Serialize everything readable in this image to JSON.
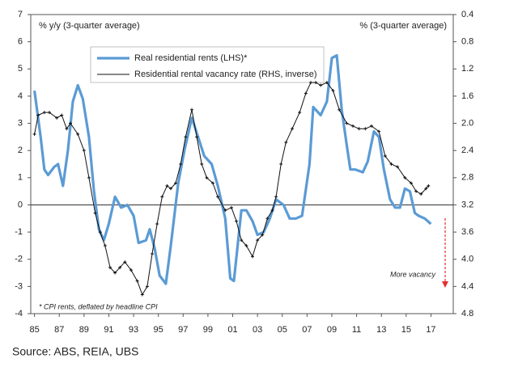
{
  "chart_data": {
    "type": "line",
    "y_label": "% y/y (3-quarter average)",
    "y2_label": "% (3-quarter average)",
    "note": "* CPI rents, deflated by headline CPI",
    "annotation": "More vacancy",
    "source": "Source: ABS, REIA, UBS",
    "xlim": [
      1984.7,
      2018.8
    ],
    "xticks": [
      {
        "value": 1985,
        "label": "85"
      },
      {
        "value": 1987,
        "label": "87"
      },
      {
        "value": 1989,
        "label": "89"
      },
      {
        "value": 1991,
        "label": "91"
      },
      {
        "value": 1993,
        "label": "93"
      },
      {
        "value": 1995,
        "label": "95"
      },
      {
        "value": 1997,
        "label": "97"
      },
      {
        "value": 1999,
        "label": "99"
      },
      {
        "value": 2001,
        "label": "01"
      },
      {
        "value": 2003,
        "label": "03"
      },
      {
        "value": 2005,
        "label": "05"
      },
      {
        "value": 2007,
        "label": "07"
      },
      {
        "value": 2009,
        "label": "09"
      },
      {
        "value": 2011,
        "label": "11"
      },
      {
        "value": 2013,
        "label": "13"
      },
      {
        "value": 2015,
        "label": "15"
      },
      {
        "value": 2017,
        "label": "17"
      }
    ],
    "ylim": [
      -4,
      7
    ],
    "yticks": [
      -4,
      -3,
      -2,
      -1,
      0,
      1,
      2,
      3,
      4,
      5,
      6,
      7
    ],
    "y2lim": [
      4.8,
      0.4
    ],
    "y2ticks": [
      4.8,
      4.4,
      4.0,
      3.6,
      3.2,
      2.8,
      2.4,
      2.0,
      1.6,
      1.2,
      0.8,
      0.4
    ],
    "series": [
      {
        "name": "Real residential rents (LHS)*",
        "color": "#5b9bd5",
        "x": [
          1985.0,
          1985.5,
          1985.8,
          1986.1,
          1986.6,
          1986.9,
          1987.3,
          1987.7,
          1988.1,
          1988.5,
          1988.9,
          1989.4,
          1989.8,
          1990.2,
          1990.6,
          1991.0,
          1991.5,
          1992.0,
          1992.5,
          1993.0,
          1993.4,
          1994.0,
          1994.3,
          1994.7,
          1995.1,
          1995.6,
          1996.0,
          1996.6,
          1997.1,
          1997.7,
          1998.2,
          1998.7,
          1999.3,
          1999.8,
          2000.4,
          2000.8,
          2001.1,
          2001.7,
          2002.1,
          2002.6,
          2003.0,
          2003.5,
          2004.0,
          2004.5,
          2005.1,
          2005.6,
          2006.1,
          2006.6,
          2007.2,
          2007.5,
          2008.1,
          2008.6,
          2009.0,
          2009.4,
          2009.8,
          2010.2,
          2010.5,
          2010.9,
          2011.5,
          2011.9,
          2012.4,
          2012.8,
          2013.2,
          2013.7,
          2014.1,
          2014.5,
          2014.9,
          2015.3,
          2015.7,
          2016.0,
          2016.5,
          2017.0
        ],
        "values": [
          4.2,
          2.5,
          1.3,
          1.1,
          1.4,
          1.5,
          0.7,
          2.0,
          3.8,
          4.4,
          3.9,
          2.5,
          0.5,
          -0.9,
          -1.3,
          -0.7,
          0.3,
          -0.1,
          0.0,
          -0.4,
          -1.4,
          -1.3,
          -0.9,
          -1.6,
          -2.6,
          -2.9,
          -1.5,
          0.8,
          2.0,
          3.2,
          2.5,
          1.8,
          1.5,
          0.7,
          -0.5,
          -2.7,
          -2.8,
          -0.2,
          -0.2,
          -0.6,
          -1.1,
          -1.0,
          -0.5,
          0.2,
          0.0,
          -0.5,
          -0.5,
          -0.4,
          1.5,
          3.6,
          3.3,
          3.8,
          5.4,
          5.5,
          3.5,
          2.2,
          1.3,
          1.3,
          1.2,
          1.6,
          2.7,
          2.5,
          1.3,
          0.2,
          -0.1,
          -0.1,
          0.6,
          0.5,
          -0.3,
          -0.4,
          -0.5,
          -0.7
        ]
      },
      {
        "name": "Residential rental vacancy rate (RHS, inverse)",
        "color": "#111111",
        "axis": "y2",
        "x": [
          1985.0,
          1985.3,
          1985.8,
          1986.2,
          1986.8,
          1987.2,
          1987.6,
          1987.9,
          1988.5,
          1989.0,
          1989.4,
          1989.9,
          1990.3,
          1990.7,
          1991.1,
          1991.5,
          1991.9,
          1992.3,
          1992.8,
          1993.3,
          1993.7,
          1994.1,
          1994.5,
          1994.9,
          1995.3,
          1995.7,
          1996.0,
          1996.4,
          1996.8,
          1997.2,
          1997.7,
          1998.1,
          1998.5,
          1998.9,
          1999.4,
          1999.8,
          2000.4,
          2000.9,
          2001.3,
          2001.7,
          2002.1,
          2002.6,
          2003.0,
          2003.4,
          2003.8,
          2004.2,
          2004.5,
          2004.9,
          2005.3,
          2005.8,
          2006.4,
          2006.9,
          2007.3,
          2007.7,
          2008.1,
          2008.6,
          2009.1,
          2009.6,
          2010.2,
          2010.7,
          2011.2,
          2011.7,
          2012.2,
          2012.8,
          2013.3,
          2013.8,
          2014.3,
          2014.9,
          2015.4,
          2015.8,
          2016.2,
          2016.6,
          2016.8
        ],
        "values": [
          2.16,
          1.88,
          1.84,
          1.84,
          1.92,
          1.88,
          2.08,
          2.0,
          2.16,
          2.4,
          2.8,
          3.32,
          3.6,
          3.8,
          4.12,
          4.2,
          4.12,
          4.04,
          4.16,
          4.32,
          4.52,
          4.4,
          3.92,
          3.48,
          3.08,
          2.92,
          2.96,
          2.88,
          2.6,
          2.2,
          1.8,
          2.2,
          2.6,
          2.8,
          2.88,
          3.08,
          3.28,
          3.24,
          3.44,
          3.72,
          3.8,
          3.96,
          3.72,
          3.64,
          3.4,
          3.28,
          3.08,
          2.6,
          2.28,
          2.08,
          1.84,
          1.56,
          1.4,
          1.4,
          1.44,
          1.4,
          1.52,
          1.8,
          2.0,
          2.04,
          2.08,
          2.08,
          2.04,
          2.12,
          2.48,
          2.6,
          2.64,
          2.8,
          2.88,
          3.0,
          3.04,
          2.96,
          2.92
        ]
      }
    ],
    "annotation_color": "#e03030"
  }
}
